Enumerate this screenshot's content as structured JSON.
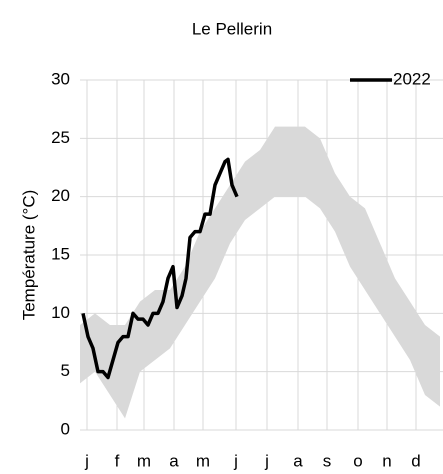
{
  "chart_data": {
    "type": "line",
    "title": "Le Pellerin",
    "ylabel": "Température (°C)",
    "xlim": [
      0,
      365
    ],
    "xticks": [
      {
        "value": 7,
        "label": "j"
      },
      {
        "value": 37,
        "label": "f"
      },
      {
        "value": 64,
        "label": "m"
      },
      {
        "value": 94,
        "label": "a"
      },
      {
        "value": 123,
        "label": "m"
      },
      {
        "value": 156,
        "label": "j"
      },
      {
        "value": 187,
        "label": "j"
      },
      {
        "value": 218,
        "label": "a"
      },
      {
        "value": 247,
        "label": "s"
      },
      {
        "value": 278,
        "label": "o"
      },
      {
        "value": 307,
        "label": "n"
      },
      {
        "value": 336,
        "label": "d"
      }
    ],
    "ylim": [
      0,
      30
    ],
    "yticks": [
      0,
      5,
      10,
      15,
      20,
      25,
      30
    ],
    "grid": true,
    "legend": "upper right",
    "band": {
      "color": "#d9d9d9",
      "x": [
        0,
        15,
        30,
        45,
        60,
        75,
        90,
        105,
        120,
        135,
        150,
        165,
        180,
        195,
        210,
        225,
        240,
        255,
        270,
        285,
        300,
        315,
        330,
        345,
        360
      ],
      "lower": [
        4,
        5,
        3,
        1,
        5,
        6,
        7,
        9,
        11,
        13,
        16,
        18,
        19,
        20,
        20,
        20,
        19,
        17,
        14,
        12,
        10,
        8,
        6,
        3,
        2
      ],
      "upper": [
        9,
        10,
        9,
        9,
        11,
        12,
        12,
        14,
        17,
        19,
        21,
        23,
        24,
        26,
        26,
        26,
        25,
        22,
        20,
        19,
        16,
        13,
        11,
        9,
        8
      ]
    },
    "series": [
      {
        "name": "2022",
        "color": "#000000",
        "x": [
          3,
          8,
          13,
          18,
          23,
          28,
          33,
          38,
          43,
          48,
          53,
          58,
          63,
          68,
          73,
          78,
          83,
          88,
          93,
          97,
          102,
          106,
          110,
          115,
          120,
          125,
          130,
          135,
          140,
          145,
          148,
          152,
          157
        ],
        "values": [
          10,
          8,
          7,
          5,
          5,
          4.5,
          6,
          7.5,
          8,
          8,
          10,
          9.5,
          9.5,
          9,
          10,
          10,
          11,
          13,
          14,
          10.5,
          11.5,
          13,
          16.5,
          17,
          17,
          18.5,
          18.5,
          21,
          22,
          23,
          23.2,
          21,
          20
        ]
      }
    ]
  }
}
